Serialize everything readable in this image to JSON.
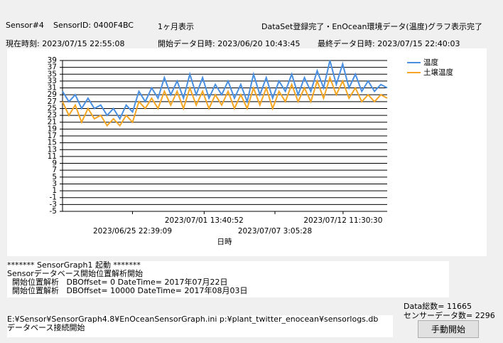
{
  "header": {
    "sensor": "Sensor#4",
    "sensor_id": "SensorID: 0400F4BC",
    "range": "1ヶ月表示",
    "status": "DataSet登録完了・EnOcean環境データ(温度)グラフ表示完了",
    "now": "現在時刻: 2023/07/15 22:55:08",
    "start": "開始データ日時: 2023/06/20 10:43:45",
    "end": "最終データ日時: 2023/07/15 22:40:03"
  },
  "chart_data": {
    "type": "line",
    "xlabel": "日時",
    "x": [
      "2023/06/20 10:43:45",
      "2023/06/20 22:43:45",
      "2023/06/21 10:43:45",
      "2023/06/21 22:43:45",
      "2023/06/22 10:43:45",
      "2023/06/22 22:43:45",
      "2023/06/23 10:43:45",
      "2023/06/23 22:43:45",
      "2023/06/24 10:43:45",
      "2023/06/24 22:43:45",
      "2023/06/25 10:43:45",
      "2023/06/25 22:43:45",
      "2023/06/26 10:43:45",
      "2023/06/26 22:43:45",
      "2023/06/27 10:43:45",
      "2023/06/27 22:43:45",
      "2023/06/28 10:43:45",
      "2023/06/28 22:43:45",
      "2023/06/29 10:43:45",
      "2023/06/29 22:43:45",
      "2023/06/30 10:43:45",
      "2023/06/30 22:43:45",
      "2023/07/01 10:43:45",
      "2023/07/01 22:43:45",
      "2023/07/02 10:43:45",
      "2023/07/02 22:43:45",
      "2023/07/03 10:43:45",
      "2023/07/03 22:43:45",
      "2023/07/04 10:43:45",
      "2023/07/04 22:43:45",
      "2023/07/05 10:43:45",
      "2023/07/05 22:43:45",
      "2023/07/06 10:43:45",
      "2023/07/06 22:43:45",
      "2023/07/07 10:43:45",
      "2023/07/07 22:43:45",
      "2023/07/08 10:43:45",
      "2023/07/08 22:43:45",
      "2023/07/09 10:43:45",
      "2023/07/09 22:43:45",
      "2023/07/10 10:43:45",
      "2023/07/10 22:43:45",
      "2023/07/11 10:43:45",
      "2023/07/11 22:43:45",
      "2023/07/12 10:43:45",
      "2023/07/12 22:43:45",
      "2023/07/13 10:43:45",
      "2023/07/13 22:43:45",
      "2023/07/14 10:43:45",
      "2023/07/14 22:43:45",
      "2023/07/15 10:43:45",
      "2023/07/15 22:40:03"
    ],
    "series": [
      {
        "name": "温度",
        "color": "#4a90e2",
        "values": [
          30,
          27,
          29,
          25,
          28,
          25,
          26,
          23,
          25,
          22,
          26,
          24,
          30,
          27,
          31,
          28,
          34,
          29,
          33,
          28,
          35,
          29,
          34,
          28,
          32,
          29,
          33,
          28,
          32,
          27,
          35,
          29,
          34,
          28,
          33,
          30,
          35,
          29,
          34,
          30,
          36,
          31,
          39,
          32,
          38,
          31,
          35,
          30,
          33,
          30,
          32,
          31
        ]
      },
      {
        "name": "土壌温度",
        "color": "#f5a623",
        "values": [
          27,
          23,
          26,
          21,
          25,
          22,
          23,
          20,
          22,
          20,
          23,
          21,
          27,
          25,
          28,
          25,
          30,
          26,
          30,
          25,
          31,
          26,
          30,
          25,
          29,
          26,
          30,
          25,
          29,
          25,
          31,
          26,
          31,
          25,
          30,
          27,
          32,
          27,
          31,
          27,
          33,
          28,
          34,
          29,
          33,
          28,
          31,
          27,
          29,
          27,
          29,
          28
        ]
      }
    ],
    "xlim": [
      "2023/06/20 10:43:45",
      "2023/07/15 22:40:03"
    ],
    "xticks": [
      "2023/06/25 22:39:09",
      "2023/07/01 13:40:52",
      "2023/07/07 3:05:28",
      "2023/07/12 11:30:30"
    ],
    "ylim": [
      -5,
      39
    ],
    "yticks": [
      -5,
      -3,
      -1,
      1,
      3,
      5,
      7,
      9,
      11,
      13,
      15,
      17,
      19,
      21,
      23,
      25,
      27,
      29,
      31,
      33,
      35,
      37,
      39
    ],
    "grid": true,
    "legend": "right"
  },
  "log": {
    "lines": [
      "******* SensorGraph1 起動 *******",
      "Sensorデータベース開始位置解析開始",
      "  開始位置解析   DBOffset= 0 DateTime= 2017年07月22日",
      "  開始位置解析   DBOffset= 10000 DateTime= 2017年08月03日"
    ]
  },
  "path_box": {
    "lines": [
      "E:¥Sensor¥SensorGraph4.8¥EnOceanSensorGraph.ini p:¥plant_twitter_enocean¥sensorlogs.db",
      "データベース接続開始"
    ]
  },
  "stats": {
    "total": "Data総数= 11665",
    "sensor_count": "センサーデータ数= 2296"
  },
  "button": "手動開始"
}
